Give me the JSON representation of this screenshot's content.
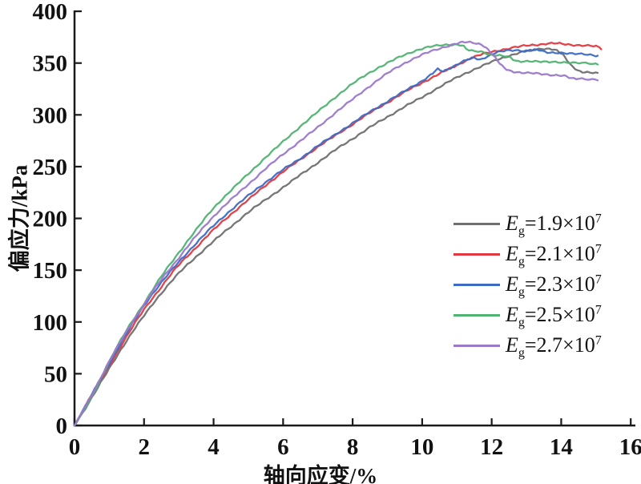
{
  "figure": {
    "background": "#ffffff",
    "axis_color": "#1a1a1a"
  },
  "chart_data": {
    "type": "line",
    "title": "",
    "xlabel": "轴向应变/%",
    "ylabel": "偏应力/kPa",
    "xlim": [
      0,
      16
    ],
    "ylim": [
      0,
      400
    ],
    "xticks": [
      0,
      2,
      4,
      6,
      8,
      10,
      12,
      14,
      16
    ],
    "yticks": [
      0,
      50,
      100,
      150,
      200,
      250,
      300,
      350,
      400
    ],
    "grid": false,
    "legend_position": "right-middle",
    "series": [
      {
        "name": "Eg=1.9×10^7",
        "legend": {
          "sym": "E",
          "sub": "g",
          "body": "=1.9×10",
          "exp": "7"
        },
        "color": "#6f6f6f",
        "points": [
          [
            0,
            0
          ],
          [
            0.5,
            27
          ],
          [
            1,
            55
          ],
          [
            1.5,
            82
          ],
          [
            2,
            106
          ],
          [
            2.5,
            128
          ],
          [
            3,
            147
          ],
          [
            3.5,
            163
          ],
          [
            4,
            178
          ],
          [
            4.5,
            192
          ],
          [
            5,
            206
          ],
          [
            5.5,
            218
          ],
          [
            6,
            230
          ],
          [
            6.5,
            242
          ],
          [
            7,
            254
          ],
          [
            7.5,
            266
          ],
          [
            8,
            277
          ],
          [
            8.5,
            288
          ],
          [
            9,
            298
          ],
          [
            9.5,
            308
          ],
          [
            10,
            317
          ],
          [
            10.5,
            327
          ],
          [
            11,
            336
          ],
          [
            11.5,
            344
          ],
          [
            12,
            351
          ],
          [
            12.4,
            356
          ],
          [
            12.8,
            360
          ],
          [
            13.1,
            362
          ],
          [
            13.5,
            364
          ],
          [
            13.8,
            363
          ],
          [
            14,
            359
          ],
          [
            14.1,
            356
          ],
          [
            14.25,
            349
          ],
          [
            14.4,
            345
          ],
          [
            14.55,
            342
          ],
          [
            14.75,
            341
          ],
          [
            15.05,
            340
          ]
        ]
      },
      {
        "name": "Eg=2.1×10^7",
        "legend": {
          "sym": "E",
          "sub": "g",
          "body": "=2.1×10",
          "exp": "7"
        },
        "color": "#e0393f",
        "points": [
          [
            0,
            0
          ],
          [
            0.5,
            30
          ],
          [
            1,
            58
          ],
          [
            1.5,
            86
          ],
          [
            2,
            112
          ],
          [
            2.5,
            134
          ],
          [
            3,
            155
          ],
          [
            3.5,
            172
          ],
          [
            4,
            189
          ],
          [
            4.5,
            204
          ],
          [
            5,
            218
          ],
          [
            5.5,
            232
          ],
          [
            6,
            245
          ],
          [
            6.5,
            257
          ],
          [
            7,
            269
          ],
          [
            7.5,
            280
          ],
          [
            8,
            291
          ],
          [
            8.5,
            302
          ],
          [
            9,
            312
          ],
          [
            9.5,
            322
          ],
          [
            10,
            331
          ],
          [
            10.4,
            338
          ],
          [
            10.7,
            343
          ],
          [
            11,
            348
          ],
          [
            11.3,
            353
          ],
          [
            11.6,
            357
          ],
          [
            12,
            361
          ],
          [
            12.5,
            364
          ],
          [
            13,
            367
          ],
          [
            13.4,
            368
          ],
          [
            13.8,
            369
          ],
          [
            14.2,
            368
          ],
          [
            14.6,
            367
          ],
          [
            15,
            366
          ],
          [
            15.15,
            364
          ]
        ]
      },
      {
        "name": "Eg=2.3×10^7",
        "legend": {
          "sym": "E",
          "sub": "g",
          "body": "=2.3×10",
          "exp": "7"
        },
        "color": "#3d6bc5",
        "points": [
          [
            0,
            0
          ],
          [
            0.5,
            30
          ],
          [
            1,
            60
          ],
          [
            1.5,
            89
          ],
          [
            2,
            116
          ],
          [
            2.5,
            138
          ],
          [
            3,
            158
          ],
          [
            3.5,
            176
          ],
          [
            4,
            193
          ],
          [
            4.5,
            208
          ],
          [
            5,
            222
          ],
          [
            5.5,
            235
          ],
          [
            6,
            247
          ],
          [
            6.5,
            258
          ],
          [
            7,
            270
          ],
          [
            7.5,
            281
          ],
          [
            8,
            292
          ],
          [
            8.5,
            303
          ],
          [
            9,
            313
          ],
          [
            9.5,
            323
          ],
          [
            10,
            333
          ],
          [
            10.3,
            340
          ],
          [
            10.45,
            344
          ],
          [
            10.6,
            342
          ],
          [
            10.9,
            347
          ],
          [
            11.2,
            352
          ],
          [
            11.5,
            355
          ],
          [
            11.65,
            353
          ],
          [
            11.9,
            357
          ],
          [
            12.2,
            361
          ],
          [
            12.6,
            362
          ],
          [
            13,
            362
          ],
          [
            13.3,
            363
          ],
          [
            13.6,
            360
          ],
          [
            14,
            360
          ],
          [
            14.4,
            359
          ],
          [
            14.75,
            358
          ],
          [
            15.05,
            357
          ]
        ]
      },
      {
        "name": "Eg=2.5×10^7",
        "legend": {
          "sym": "E",
          "sub": "g",
          "body": "=2.5×10",
          "exp": "7"
        },
        "color": "#4fb371",
        "points": [
          [
            0,
            0
          ],
          [
            0.5,
            28
          ],
          [
            1,
            62
          ],
          [
            1.5,
            92
          ],
          [
            2,
            118
          ],
          [
            2.5,
            144
          ],
          [
            3,
            167
          ],
          [
            3.5,
            189
          ],
          [
            4,
            210
          ],
          [
            4.5,
            227
          ],
          [
            5,
            243
          ],
          [
            5.5,
            259
          ],
          [
            6,
            274
          ],
          [
            6.5,
            289
          ],
          [
            7,
            303
          ],
          [
            7.5,
            317
          ],
          [
            8,
            330
          ],
          [
            8.5,
            341
          ],
          [
            9,
            350
          ],
          [
            9.5,
            358
          ],
          [
            10,
            364
          ],
          [
            10.5,
            367
          ],
          [
            11,
            368
          ],
          [
            11.2,
            366
          ],
          [
            11.35,
            362
          ],
          [
            11.7,
            361
          ],
          [
            12,
            358
          ],
          [
            12.3,
            357
          ],
          [
            12.55,
            355
          ],
          [
            12.7,
            352
          ],
          [
            13.1,
            352
          ],
          [
            13.5,
            351
          ],
          [
            14,
            351
          ],
          [
            14.5,
            350
          ],
          [
            15.05,
            349
          ]
        ]
      },
      {
        "name": "Eg=2.7×10^7",
        "legend": {
          "sym": "E",
          "sub": "g",
          "body": "=2.7×10",
          "exp": "7"
        },
        "color": "#9b78ca",
        "points": [
          [
            0,
            0
          ],
          [
            0.5,
            30
          ],
          [
            1,
            62
          ],
          [
            1.5,
            91
          ],
          [
            2,
            117
          ],
          [
            2.5,
            141
          ],
          [
            3,
            162
          ],
          [
            3.5,
            183
          ],
          [
            4,
            202
          ],
          [
            4.5,
            218
          ],
          [
            5,
            233
          ],
          [
            5.5,
            248
          ],
          [
            6,
            262
          ],
          [
            6.5,
            275
          ],
          [
            7,
            288
          ],
          [
            7.5,
            302
          ],
          [
            8,
            315
          ],
          [
            8.5,
            328
          ],
          [
            9,
            340
          ],
          [
            9.5,
            350
          ],
          [
            10,
            358
          ],
          [
            10.5,
            364
          ],
          [
            11,
            369
          ],
          [
            11.3,
            370
          ],
          [
            11.7,
            368
          ],
          [
            11.9,
            363
          ],
          [
            12.1,
            355
          ],
          [
            12.3,
            347
          ],
          [
            12.5,
            343
          ],
          [
            12.8,
            341
          ],
          [
            13.2,
            340
          ],
          [
            13.6,
            339
          ],
          [
            14,
            338
          ],
          [
            14.15,
            337
          ],
          [
            14.3,
            335
          ],
          [
            14.6,
            335
          ],
          [
            15.05,
            334
          ]
        ]
      }
    ]
  }
}
